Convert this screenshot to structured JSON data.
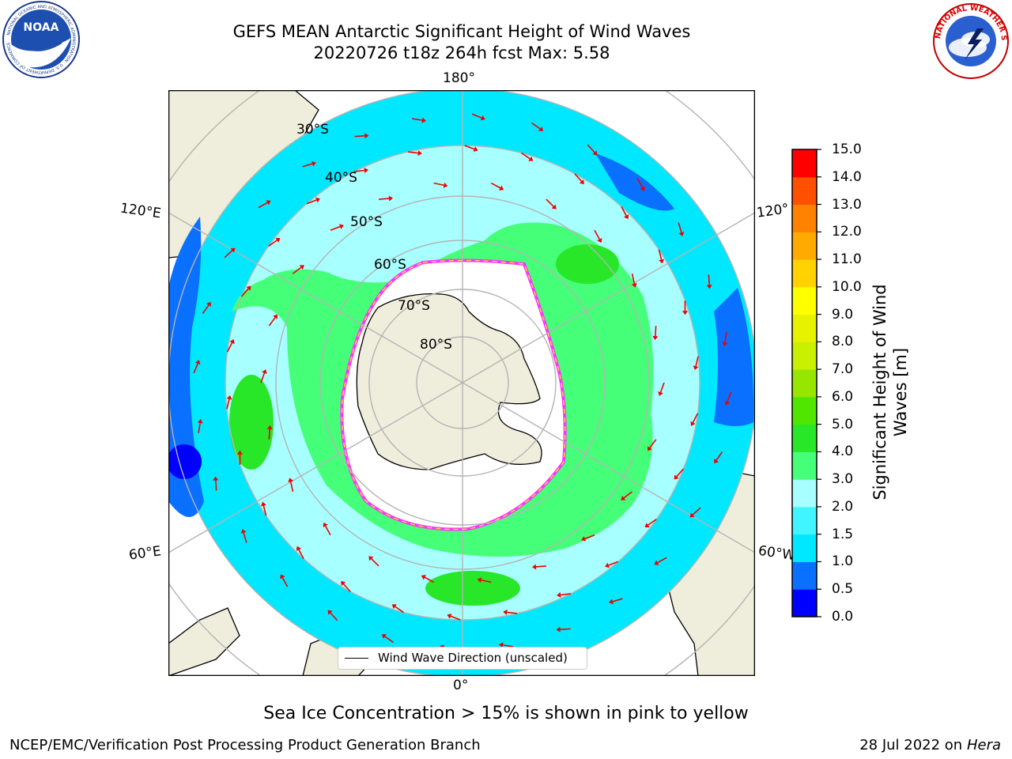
{
  "header": {
    "title_line1": "GEFS MEAN Antarctic Significant Height of Wind Waves",
    "title_line2": "20220726 t18z 264h fcst   Max: 5.58"
  },
  "logos": {
    "left": {
      "name": "noaa-logo",
      "text": "NOAA",
      "ring_text": "NATIONAL OCEANIC AND ATMOSPHERIC ADMINISTRATION · U.S. DEPARTMENT OF COMMERCE"
    },
    "right": {
      "name": "nws-logo",
      "ring_text": "NATIONAL WEATHER SERVICE"
    }
  },
  "map": {
    "projection": "south-polar-stereographic",
    "lon_labels": {
      "top": "180°",
      "bottom": "0°",
      "upper_left": "120°E",
      "lower_left": "60°E",
      "upper_right": "120°",
      "lower_right": "60°W"
    },
    "lat_labels": [
      "30°S",
      "40°S",
      "50°S",
      "60°S",
      "70°S",
      "80°S"
    ],
    "legend": "Wind Wave Direction (unscaled)",
    "colors": {
      "land": "#efeedc",
      "sea_ice_interior": "#ffffff",
      "ice_edge_pink": "#ff33ff",
      "ice_edge_yellow": "#ffcc44",
      "arrow": "#ee0000",
      "grid": "#b4b4b4"
    }
  },
  "colorbar": {
    "label": "Significant Height of Wind Waves [m]",
    "ticks": [
      "0.0",
      "0.5",
      "1.0",
      "1.5",
      "2.0",
      "3.0",
      "4.0",
      "5.0",
      "6.0",
      "7.0",
      "8.0",
      "9.0",
      "10.0",
      "11.0",
      "12.0",
      "13.0",
      "14.0",
      "15.0"
    ],
    "colors": [
      "#0000ff",
      "#0a70ff",
      "#00e8ff",
      "#40f5ff",
      "#a8ffff",
      "#46ff78",
      "#28e628",
      "#50e600",
      "#96e600",
      "#c8f000",
      "#e6f200",
      "#ffff00",
      "#ffd200",
      "#ffaa00",
      "#ff8200",
      "#ff5000",
      "#ff0000"
    ]
  },
  "footer": {
    "note": "Sea Ice Concentration > 15% is shown in pink to yellow",
    "left": "NCEP/EMC/Verification Post Processing Product Generation Branch",
    "right_date": "28 Jul 2022 on",
    "right_host": "Hera"
  }
}
